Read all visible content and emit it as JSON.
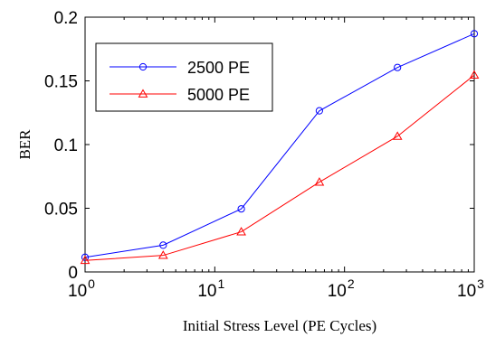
{
  "chart_data": {
    "type": "line",
    "xlabel": "Initial Stress Level (PE Cycles)",
    "ylabel": "BER",
    "xscale": "log",
    "xlim": [
      1,
      1000
    ],
    "ylim": [
      0,
      0.2
    ],
    "x": [
      1,
      4,
      16,
      64,
      256,
      1000
    ],
    "xticks": [
      {
        "value": 1,
        "base": "10",
        "exp": "0"
      },
      {
        "value": 10,
        "base": "10",
        "exp": "1"
      },
      {
        "value": 100,
        "base": "10",
        "exp": "2"
      },
      {
        "value": 1000,
        "base": "10",
        "exp": "3"
      }
    ],
    "yticks": [
      {
        "value": 0,
        "label": "0"
      },
      {
        "value": 0.05,
        "label": "0.05"
      },
      {
        "value": 0.1,
        "label": "0.1"
      },
      {
        "value": 0.15,
        "label": "0.15"
      },
      {
        "value": 0.2,
        "label": "0.2"
      }
    ],
    "grid": false,
    "legend_position": "top-left",
    "series": [
      {
        "name": "2500 PE",
        "color": "#0000ff",
        "marker": "circle",
        "values": [
          0.0115,
          0.021,
          0.0495,
          0.1265,
          0.1605,
          0.187
        ]
      },
      {
        "name": "5000 PE",
        "color": "#ff0000",
        "marker": "triangle",
        "values": [
          0.009,
          0.013,
          0.0315,
          0.0705,
          0.1065,
          0.1545
        ]
      }
    ]
  }
}
